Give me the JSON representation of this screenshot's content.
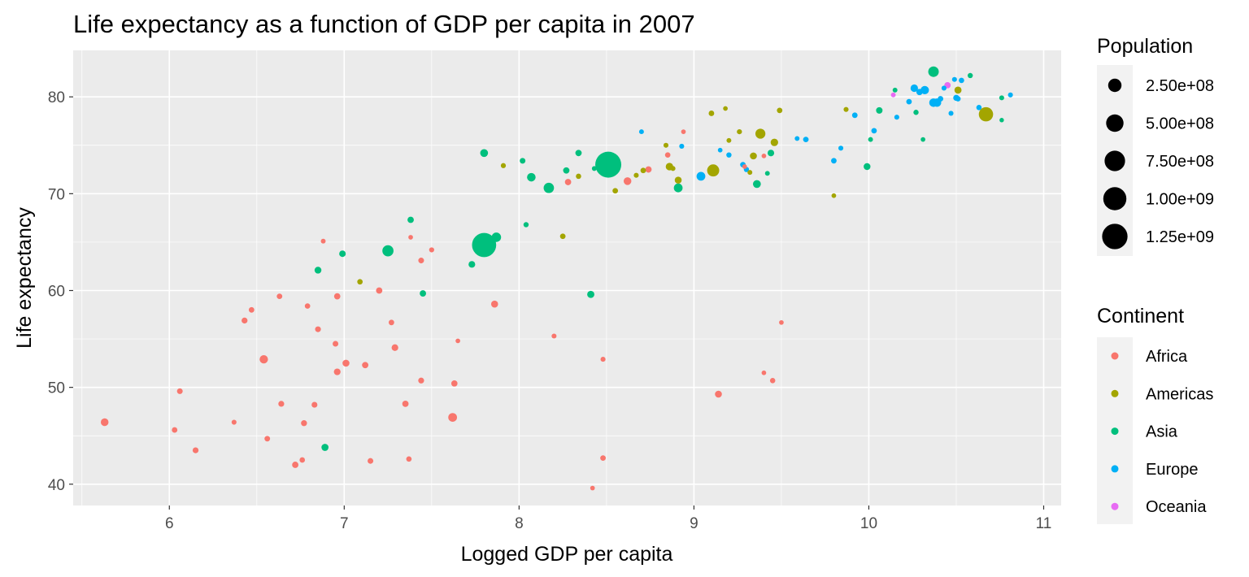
{
  "chart_data": {
    "type": "scatter",
    "title": "Life expectancy as a function of GDP per capita in 2007",
    "xlabel": "Logged GDP per capita",
    "ylabel": "Life expectancy",
    "xlim": [
      5.45,
      11.1
    ],
    "ylim": [
      37.8,
      84.8
    ],
    "x_ticks": [
      6,
      7,
      8,
      9,
      10,
      11
    ],
    "y_ticks": [
      40,
      50,
      60,
      70,
      80
    ],
    "x_tick_labels": [
      "6",
      "7",
      "8",
      "9",
      "10",
      "11"
    ],
    "y_tick_labels": [
      "40",
      "50",
      "60",
      "70",
      "80"
    ],
    "grid": true,
    "legend_position": "right",
    "size_legend": {
      "title": "Population",
      "values": [
        250000000,
        500000000,
        750000000,
        1000000000,
        1250000000
      ],
      "labels": [
        "2.50e+08",
        "5.00e+08",
        "7.50e+08",
        "1.00e+09",
        "1.25e+09"
      ]
    },
    "color_legend": {
      "title": "Continent",
      "labels": [
        "Africa",
        "Americas",
        "Asia",
        "Europe",
        "Oceania"
      ],
      "colors": [
        "#F8766D",
        "#A3A500",
        "#00BF7D",
        "#00B0F6",
        "#E76BF3"
      ]
    },
    "series": [
      {
        "name": "Africa",
        "color": "#F8766D",
        "points": [
          [
            5.63,
            46.4,
            45
          ],
          [
            6.03,
            45.6,
            10
          ],
          [
            6.06,
            49.6,
            12
          ],
          [
            6.15,
            43.5,
            14
          ],
          [
            6.37,
            46.4,
            5
          ],
          [
            6.43,
            56.9,
            15
          ],
          [
            6.47,
            58.0,
            10
          ],
          [
            6.54,
            52.9,
            60
          ],
          [
            6.56,
            44.7,
            11
          ],
          [
            6.63,
            59.4,
            10
          ],
          [
            6.64,
            48.3,
            14
          ],
          [
            6.72,
            42.0,
            20
          ],
          [
            6.76,
            42.5,
            9
          ],
          [
            6.77,
            46.3,
            15
          ],
          [
            6.79,
            58.4,
            9
          ],
          [
            6.83,
            48.2,
            13
          ],
          [
            6.85,
            56.0,
            13
          ],
          [
            6.88,
            65.1,
            4
          ],
          [
            6.95,
            54.5,
            12
          ],
          [
            6.96,
            59.4,
            19
          ],
          [
            6.96,
            51.6,
            25
          ],
          [
            7.01,
            52.5,
            30
          ],
          [
            7.12,
            52.3,
            20
          ],
          [
            7.15,
            42.4,
            12
          ],
          [
            7.2,
            60.0,
            20
          ],
          [
            7.27,
            56.7,
            10
          ],
          [
            7.29,
            54.1,
            25
          ],
          [
            7.35,
            48.3,
            20
          ],
          [
            7.37,
            42.6,
            9
          ],
          [
            7.38,
            65.5,
            3
          ],
          [
            7.44,
            63.1,
            12
          ],
          [
            7.44,
            50.7,
            14
          ],
          [
            7.5,
            64.2,
            6
          ],
          [
            7.62,
            46.9,
            70
          ],
          [
            7.63,
            50.4,
            18
          ],
          [
            7.65,
            54.8,
            3
          ],
          [
            7.86,
            58.6,
            30
          ],
          [
            8.2,
            55.3,
            5
          ],
          [
            8.28,
            71.2,
            20
          ],
          [
            8.42,
            39.6,
            3
          ],
          [
            8.48,
            52.9,
            5
          ],
          [
            8.48,
            42.7,
            10
          ],
          [
            8.62,
            71.3,
            45
          ],
          [
            8.74,
            72.5,
            20
          ],
          [
            8.85,
            74.0,
            9
          ],
          [
            8.94,
            76.4,
            3
          ],
          [
            9.14,
            49.3,
            30
          ],
          [
            9.29,
            72.8,
            3
          ],
          [
            9.4,
            51.5,
            3
          ],
          [
            9.4,
            73.9,
            3
          ],
          [
            9.45,
            50.7,
            8
          ],
          [
            9.5,
            56.7,
            3
          ]
        ]
      },
      {
        "name": "Americas",
        "color": "#A3A500",
        "points": [
          [
            7.09,
            60.9,
            9
          ],
          [
            7.91,
            72.9,
            6
          ],
          [
            8.25,
            65.6,
            10
          ],
          [
            8.34,
            71.8,
            8
          ],
          [
            8.55,
            70.3,
            10
          ],
          [
            8.67,
            71.9,
            5
          ],
          [
            8.71,
            72.4,
            10
          ],
          [
            8.84,
            75.0,
            5
          ],
          [
            8.86,
            72.8,
            40
          ],
          [
            8.88,
            72.6,
            5
          ],
          [
            8.91,
            71.4,
            30
          ],
          [
            9.1,
            78.3,
            10
          ],
          [
            9.11,
            72.4,
            190
          ],
          [
            9.18,
            78.8,
            3
          ],
          [
            9.2,
            75.5,
            4
          ],
          [
            9.26,
            76.4,
            6
          ],
          [
            9.32,
            72.2,
            4
          ],
          [
            9.34,
            73.9,
            30
          ],
          [
            9.38,
            76.2,
            108
          ],
          [
            9.46,
            75.3,
            40
          ],
          [
            9.49,
            78.6,
            10
          ],
          [
            9.8,
            69.8,
            3
          ],
          [
            9.87,
            78.7,
            5
          ],
          [
            10.51,
            80.7,
            33
          ],
          [
            10.67,
            78.2,
            301
          ]
        ]
      },
      {
        "name": "Asia",
        "color": "#00BF7D",
        "points": [
          [
            6.85,
            62.1,
            28
          ],
          [
            6.89,
            43.8,
            32
          ],
          [
            6.99,
            63.8,
            23
          ],
          [
            7.25,
            64.1,
            150
          ],
          [
            7.38,
            67.3,
            20
          ],
          [
            7.45,
            59.7,
            20
          ],
          [
            7.73,
            62.7,
            25
          ],
          [
            7.8,
            74.2,
            48
          ],
          [
            7.8,
            64.7,
            1110
          ],
          [
            7.87,
            65.5,
            90
          ],
          [
            8.02,
            73.4,
            12
          ],
          [
            8.04,
            66.8,
            7
          ],
          [
            8.07,
            71.7,
            65
          ],
          [
            8.17,
            70.6,
            120
          ],
          [
            8.27,
            72.4,
            20
          ],
          [
            8.34,
            74.2,
            20
          ],
          [
            8.41,
            59.6,
            34
          ],
          [
            8.43,
            72.6,
            4
          ],
          [
            8.51,
            73.0,
            1318
          ],
          [
            8.91,
            70.6,
            70
          ],
          [
            9.36,
            71.0,
            49
          ],
          [
            9.42,
            72.1,
            4
          ],
          [
            9.44,
            74.2,
            24
          ],
          [
            9.99,
            72.8,
            28
          ],
          [
            10.01,
            75.6,
            4
          ],
          [
            10.06,
            78.6,
            22
          ],
          [
            10.15,
            80.7,
            4
          ],
          [
            10.27,
            78.4,
            7
          ],
          [
            10.31,
            75.6,
            3
          ],
          [
            10.37,
            82.6,
            127
          ],
          [
            10.58,
            82.2,
            7
          ],
          [
            10.76,
            79.9,
            5
          ],
          [
            10.76,
            77.6,
            2
          ]
        ]
      },
      {
        "name": "Europe",
        "color": "#00B0F6",
        "points": [
          [
            8.7,
            76.4,
            4
          ],
          [
            8.93,
            74.9,
            5
          ],
          [
            9.04,
            71.8,
            71
          ],
          [
            9.15,
            74.5,
            3
          ],
          [
            9.2,
            74.0,
            7
          ],
          [
            9.28,
            73.0,
            10
          ],
          [
            9.3,
            72.5,
            7
          ],
          [
            9.59,
            75.7,
            4
          ],
          [
            9.64,
            75.6,
            10
          ],
          [
            9.8,
            73.4,
            10
          ],
          [
            9.84,
            74.7,
            5
          ],
          [
            9.92,
            78.1,
            10
          ],
          [
            10.03,
            76.5,
            10
          ],
          [
            10.16,
            77.9,
            5
          ],
          [
            10.23,
            79.5,
            10
          ],
          [
            10.26,
            80.9,
            40
          ],
          [
            10.29,
            80.5,
            20
          ],
          [
            10.32,
            80.7,
            60
          ],
          [
            10.37,
            79.4,
            65
          ],
          [
            10.39,
            79.4,
            61
          ],
          [
            10.41,
            79.8,
            10
          ],
          [
            10.43,
            80.9,
            5
          ],
          [
            10.47,
            78.3,
            5
          ],
          [
            10.49,
            81.8,
            5
          ],
          [
            10.5,
            79.9,
            16
          ],
          [
            10.51,
            79.8,
            8
          ],
          [
            10.53,
            81.7,
            9
          ],
          [
            10.63,
            78.9,
            8
          ],
          [
            10.81,
            80.2,
            5
          ]
        ]
      },
      {
        "name": "Oceania",
        "color": "#E76BF3",
        "points": [
          [
            10.14,
            80.2,
            4
          ],
          [
            10.45,
            81.2,
            20
          ]
        ]
      }
    ]
  }
}
